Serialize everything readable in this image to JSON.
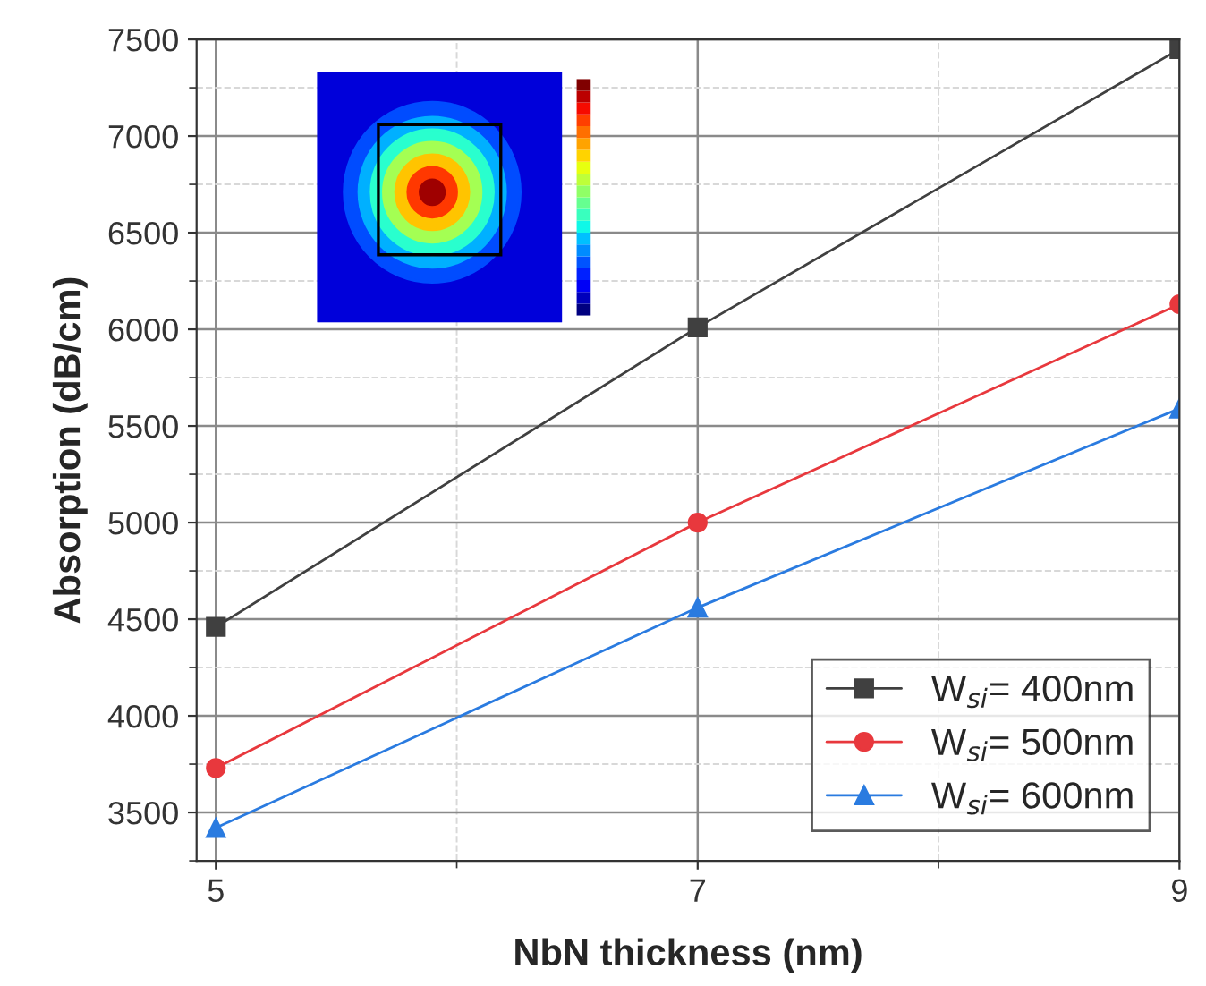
{
  "chart_data": {
    "type": "line",
    "xlabel": "NbN thickness (nm)",
    "ylabel": "Absorption (dB/cm)",
    "x": [
      5,
      7,
      9
    ],
    "series": [
      {
        "name": "W$_{si}$= 400nm",
        "color": "#404040",
        "marker": "square",
        "values": [
          4460,
          6010,
          7450
        ]
      },
      {
        "name": "W$_{si}$= 500nm",
        "color": "#e8383d",
        "marker": "circle",
        "values": [
          3730,
          5000,
          6130
        ]
      },
      {
        "name": "W$_{si}$= 600nm",
        "color": "#2a7be0",
        "marker": "triangle",
        "values": [
          3420,
          4560,
          5590
        ]
      }
    ],
    "xlim": [
      4.92,
      9
    ],
    "xticks": [
      5,
      7,
      9
    ],
    "ylim": [
      3250,
      7500
    ],
    "yticks": [
      3500,
      4000,
      4500,
      5000,
      5500,
      6000,
      6500,
      7000,
      7500
    ],
    "grid": true,
    "legend": "bottom right",
    "line_style": "solid"
  }
}
